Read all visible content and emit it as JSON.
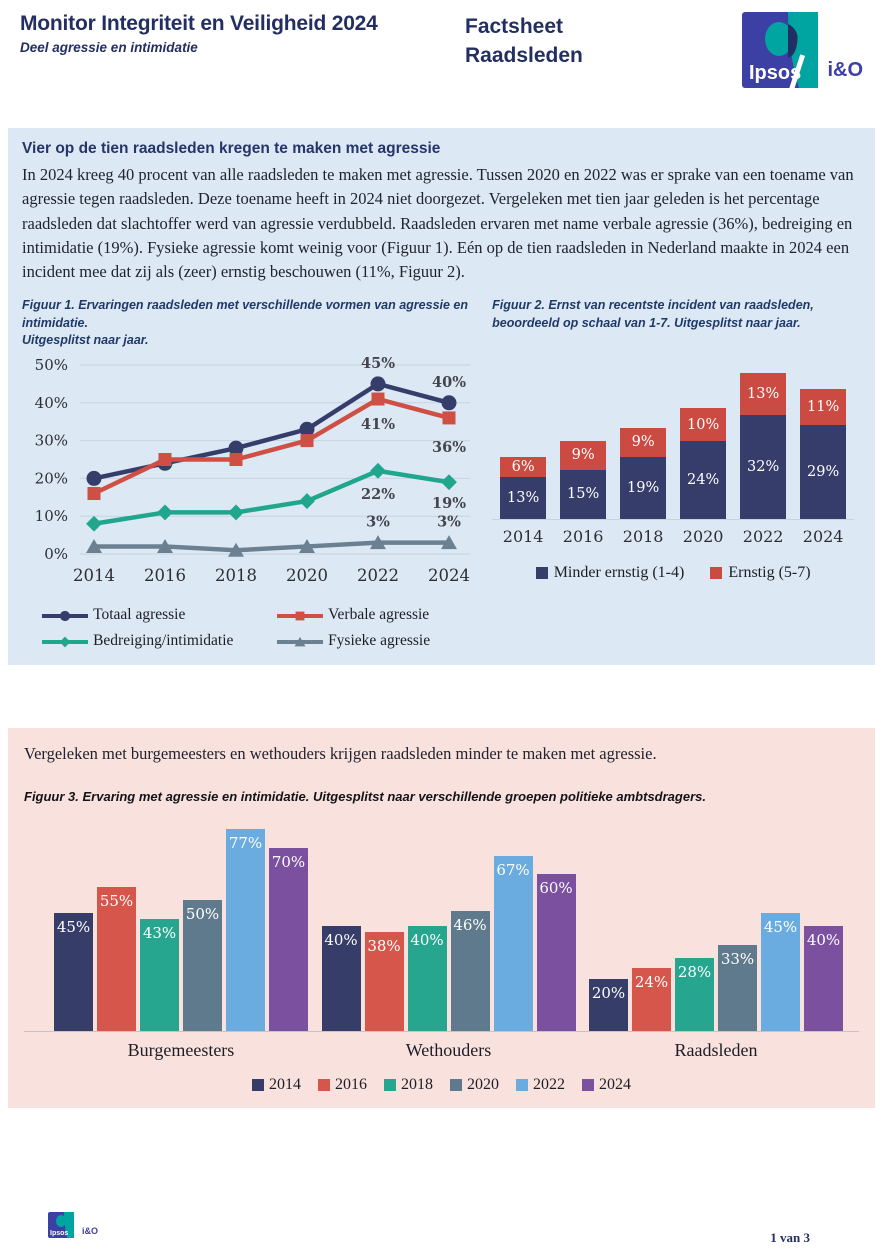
{
  "header": {
    "title": "Monitor Integriteit en Veiligheid 2024",
    "subtitle": "Deel agressie en intimidatie",
    "factsheet": "Factsheet\nRaadsleden"
  },
  "logo": {
    "ipsos": "Ipsos",
    "io": "i&O"
  },
  "colors": {
    "brand_navy": "#232f62",
    "logo_blue": "#3c3fa4",
    "logo_teal": "#00a4a0",
    "section_blue_bg": "#dce9f4",
    "section_pink_bg": "#f9e1de",
    "series_navy": "#363d6b",
    "series_red": "#cf4f45",
    "series_teal": "#21a68e",
    "series_gray": "#6b8191",
    "series_lightblue": "#6aace0",
    "series_purple": "#7b509f"
  },
  "section1": {
    "heading": "Vier op de tien raadsleden kregen te maken met agressie",
    "body": "In 2024 kreeg 40 procent van alle raadsleden te maken met agressie. Tussen 2020 en 2022 was er sprake van een toename van agressie tegen raadsleden. Deze toename heeft in 2024 niet doorgezet. Vergeleken met tien jaar geleden is het percentage raadsleden dat slachtoffer werd van agressie verdubbeld. Raadsleden ervaren met name verbale agressie (36%), bedreiging en intimidatie (19%). Fysieke agressie komt weinig voor (Figuur 1). Eén op de tien raadsleden in Nederland maakte in 2024 een incident mee dat zij als (zeer) ernstig beschouwen (11%, Figuur 2)."
  },
  "section2": {
    "intro": "Vergeleken met burgemeesters en wethouders krijgen raadsleden minder te maken met agressie."
  },
  "footer": {
    "page_label": "1 van 3"
  },
  "chart_data": [
    {
      "type": "line",
      "title": "Figuur 1. Ervaringen raadsleden met verschillende vormen van agressie en intimidatie.\nUitgesplitst naar jaar.",
      "x": [
        "2014",
        "2016",
        "2018",
        "2020",
        "2022",
        "2024"
      ],
      "ylim": [
        0,
        50
      ],
      "yticks": [
        "0%",
        "10%",
        "20%",
        "30%",
        "40%",
        "50%"
      ],
      "grid": true,
      "legend_position": "bottom",
      "series": [
        {
          "name": "Totaal agressie",
          "color": "#363d6b",
          "marker": "circle",
          "values": [
            20,
            24,
            28,
            33,
            45,
            40
          ]
        },
        {
          "name": "Verbale agressie",
          "color": "#cf4f45",
          "marker": "square",
          "values": [
            16,
            25,
            25,
            30,
            41,
            36
          ]
        },
        {
          "name": "Bedreiging/intimidatie",
          "color": "#21a68e",
          "marker": "diamond",
          "values": [
            8,
            11,
            11,
            14,
            22,
            19
          ]
        },
        {
          "name": "Fysieke agressie",
          "color": "#6b8191",
          "marker": "triangle",
          "values": [
            2,
            2,
            1,
            2,
            3,
            3
          ]
        }
      ],
      "annotations": [
        {
          "text": "45%",
          "xi": 4,
          "y": 45,
          "dy": -16
        },
        {
          "text": "40%",
          "xi": 5,
          "y": 40,
          "dy": -16
        },
        {
          "text": "41%",
          "xi": 4,
          "y": 41,
          "dy": 30
        },
        {
          "text": "36%",
          "xi": 5,
          "y": 36,
          "dy": 34
        },
        {
          "text": "22%",
          "xi": 4,
          "y": 22,
          "dy": 28
        },
        {
          "text": "19%",
          "xi": 5,
          "y": 19,
          "dy": 26
        },
        {
          "text": "3%",
          "xi": 4,
          "y": 3,
          "dy": -16
        },
        {
          "text": "3%",
          "xi": 5,
          "y": 3,
          "dy": -16
        }
      ]
    },
    {
      "type": "bar",
      "subtype": "stacked",
      "title": "Figuur 2. Ernst van recentste incident van raadsleden, beoordeeld op schaal van 1-7. Uitgesplitst naar jaar.",
      "categories": [
        "2014",
        "2016",
        "2018",
        "2020",
        "2022",
        "2024"
      ],
      "legend_position": "bottom",
      "series": [
        {
          "name": "Minder ernstig (1-4)",
          "color": "#363d6b",
          "values": [
            13,
            15,
            19,
            24,
            32,
            29
          ]
        },
        {
          "name": "Ernstig (5-7)",
          "color": "#cb4b42",
          "values": [
            6,
            9,
            9,
            10,
            13,
            11
          ]
        }
      ]
    },
    {
      "type": "bar",
      "subtype": "grouped",
      "title": "Figuur 3. Ervaring met agressie en intimidatie. Uitgesplitst naar verschillende groepen politieke ambtsdragers.",
      "categories": [
        "Burgemeesters",
        "Wethouders",
        "Raadsleden"
      ],
      "legend_position": "bottom",
      "series": [
        {
          "name": "2014",
          "color": "#363d68",
          "values": [
            45,
            40,
            20
          ]
        },
        {
          "name": "2016",
          "color": "#d6564c",
          "values": [
            55,
            38,
            24
          ]
        },
        {
          "name": "2018",
          "color": "#27a68f",
          "values": [
            43,
            40,
            28
          ]
        },
        {
          "name": "2020",
          "color": "#5f7a8c",
          "values": [
            50,
            46,
            33
          ]
        },
        {
          "name": "2022",
          "color": "#6aace0",
          "values": [
            77,
            67,
            45
          ]
        },
        {
          "name": "2024",
          "color": "#7b509f",
          "values": [
            70,
            60,
            40
          ]
        }
      ]
    }
  ]
}
